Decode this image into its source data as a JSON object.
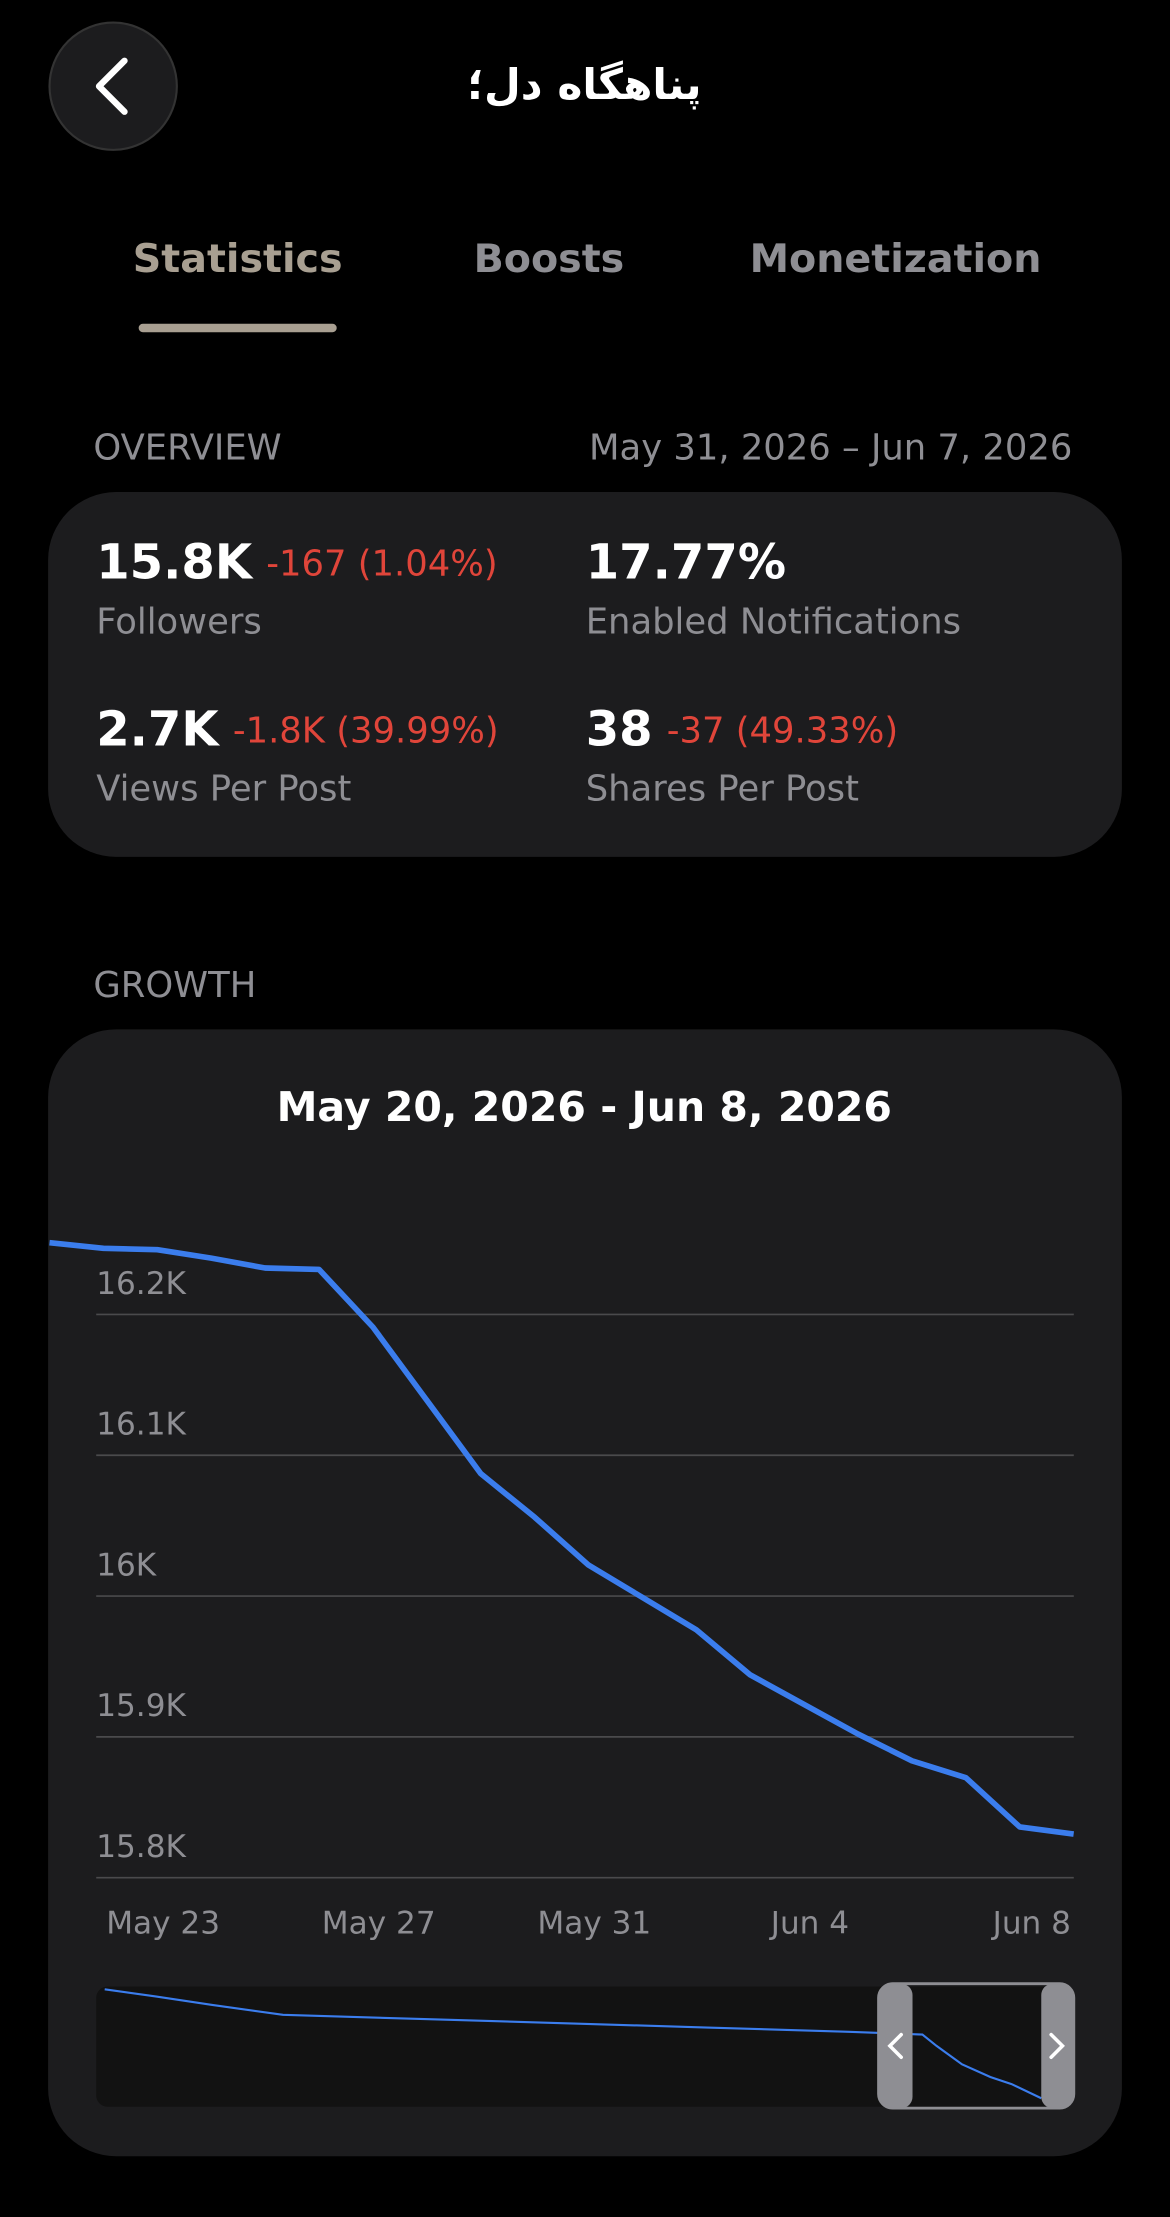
{
  "header": {
    "title": "پناهگاه دل؛"
  },
  "tabs": {
    "items": [
      "Statistics",
      "Boosts",
      "Monetization"
    ],
    "active": 0
  },
  "overview": {
    "heading": "OVERVIEW",
    "range": "May 31, 2026 – Jun 7, 2026",
    "stats": [
      {
        "value": "15.8K",
        "change": "-167 (1.04%)",
        "label": "Followers"
      },
      {
        "value": "17.77%",
        "label": "Enabled Notifications"
      },
      {
        "value": "2.7K",
        "change": "-1.8K (39.99%)",
        "label": "Views Per Post"
      },
      {
        "value": "38",
        "change": "-37 (49.33%)",
        "label": "Shares Per Post"
      }
    ]
  },
  "growth": {
    "heading": "GROWTH"
  },
  "chart_data": {
    "type": "line",
    "title": "May 20, 2026 - Jun 8, 2026",
    "categories": [
      null,
      null,
      null,
      "May 23",
      null,
      null,
      null,
      "May 27",
      null,
      null,
      null,
      "May 31",
      null,
      null,
      null,
      "Jun 4",
      null,
      null,
      null,
      "Jun 8"
    ],
    "values": [
      16251,
      16247,
      16246,
      16240,
      16233,
      16232,
      16191,
      16139,
      16087,
      16056,
      16022,
      15999,
      15976,
      15944,
      15923,
      15902,
      15883,
      15871,
      15836,
      15831
    ],
    "color": "#3b7ded",
    "ylim": [
      15800,
      16280
    ],
    "yticks": [
      {
        "value": 15800,
        "label": "15.8K"
      },
      {
        "value": 15900,
        "label": "15.9K"
      },
      {
        "value": 16000,
        "label": "16K"
      },
      {
        "value": 16100,
        "label": "16.1K"
      },
      {
        "value": 16200,
        "label": "16.2K"
      }
    ],
    "grid": true
  }
}
